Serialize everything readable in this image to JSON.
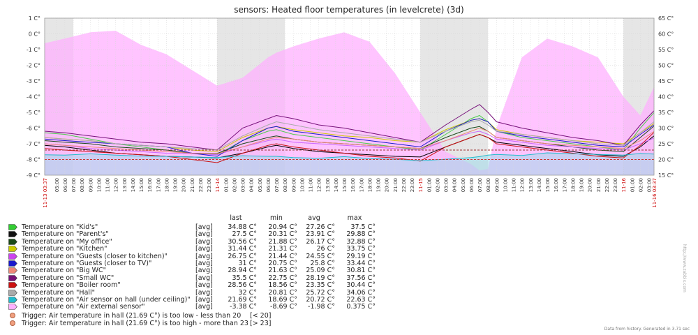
{
  "chart_data": {
    "type": "line",
    "title": "sensors: Heated floor temperatures (in levelcrete) (3d)",
    "left_axis": {
      "min": -9,
      "max": 1,
      "step": 1,
      "unit": "C°",
      "tick_labels": [
        "1 C°",
        "0 C°",
        "-1 C°",
        "-2 C°",
        "-3 C°",
        "-4 C°",
        "-5 C°",
        "-6 C°",
        "-7 C°",
        "-8 C°",
        "-9 C°"
      ]
    },
    "right_axis": {
      "min": 15,
      "max": 65,
      "step": 5,
      "unit": "C°",
      "tick_labels": [
        "65 C°",
        "60 C°",
        "55 C°",
        "50 C°",
        "45 C°",
        "40 C°",
        "35 C°",
        "30 C°",
        "25 C°",
        "20 C°",
        "15 C°"
      ]
    },
    "x_start_hour": 3.617,
    "x_span_hours": 72,
    "x_labels": [
      {
        "h": 3.617,
        "text": "11-13 03:37",
        "highlight": true
      },
      {
        "h": 5,
        "text": "05:00"
      },
      {
        "h": 6,
        "text": "06:00"
      },
      {
        "h": 7,
        "text": "07:00"
      },
      {
        "h": 8,
        "text": "08:00"
      },
      {
        "h": 9,
        "text": "09:00"
      },
      {
        "h": 10,
        "text": "10:00"
      },
      {
        "h": 11,
        "text": "11:00"
      },
      {
        "h": 12,
        "text": "12:00"
      },
      {
        "h": 13,
        "text": "13:00"
      },
      {
        "h": 14,
        "text": "14:00"
      },
      {
        "h": 15,
        "text": "15:00"
      },
      {
        "h": 16,
        "text": "16:00"
      },
      {
        "h": 17,
        "text": "17:00"
      },
      {
        "h": 18,
        "text": "18:00"
      },
      {
        "h": 19,
        "text": "19:00"
      },
      {
        "h": 20,
        "text": "20:00"
      },
      {
        "h": 21,
        "text": "21:00"
      },
      {
        "h": 22,
        "text": "22:00"
      },
      {
        "h": 23,
        "text": "23:00"
      },
      {
        "h": 24,
        "text": "11-14",
        "highlight": true
      },
      {
        "h": 25,
        "text": "01:00"
      },
      {
        "h": 26,
        "text": "02:00"
      },
      {
        "h": 27,
        "text": "03:00"
      },
      {
        "h": 28,
        "text": "04:00"
      },
      {
        "h": 29,
        "text": "05:00"
      },
      {
        "h": 30,
        "text": "06:00"
      },
      {
        "h": 31,
        "text": "07:00"
      },
      {
        "h": 32,
        "text": "08:00"
      },
      {
        "h": 33,
        "text": "09:00"
      },
      {
        "h": 34,
        "text": "10:00"
      },
      {
        "h": 35,
        "text": "11:00"
      },
      {
        "h": 36,
        "text": "12:00"
      },
      {
        "h": 37,
        "text": "13:00"
      },
      {
        "h": 38,
        "text": "14:00"
      },
      {
        "h": 39,
        "text": "15:00"
      },
      {
        "h": 40,
        "text": "16:00"
      },
      {
        "h": 41,
        "text": "17:00"
      },
      {
        "h": 42,
        "text": "18:00"
      },
      {
        "h": 43,
        "text": "19:00"
      },
      {
        "h": 44,
        "text": "20:00"
      },
      {
        "h": 45,
        "text": "21:00"
      },
      {
        "h": 46,
        "text": "22:00"
      },
      {
        "h": 47,
        "text": "23:00"
      },
      {
        "h": 48,
        "text": "11-15",
        "highlight": true
      },
      {
        "h": 49,
        "text": "01:00"
      },
      {
        "h": 50,
        "text": "02:00"
      },
      {
        "h": 51,
        "text": "03:00"
      },
      {
        "h": 52,
        "text": "04:00"
      },
      {
        "h": 53,
        "text": "05:00"
      },
      {
        "h": 54,
        "text": "06:00"
      },
      {
        "h": 55,
        "text": "07:00"
      },
      {
        "h": 56,
        "text": "08:00"
      },
      {
        "h": 57,
        "text": "09:00"
      },
      {
        "h": 58,
        "text": "10:00"
      },
      {
        "h": 59,
        "text": "11:00"
      },
      {
        "h": 60,
        "text": "12:00"
      },
      {
        "h": 61,
        "text": "13:00"
      },
      {
        "h": 62,
        "text": "14:00"
      },
      {
        "h": 63,
        "text": "15:00"
      },
      {
        "h": 64,
        "text": "16:00"
      },
      {
        "h": 65,
        "text": "17:00"
      },
      {
        "h": 66,
        "text": "18:00"
      },
      {
        "h": 67,
        "text": "19:00"
      },
      {
        "h": 68,
        "text": "20:00"
      },
      {
        "h": 69,
        "text": "21:00"
      },
      {
        "h": 70,
        "text": "22:00"
      },
      {
        "h": 71,
        "text": "23:00"
      },
      {
        "h": 72,
        "text": "11-16",
        "highlight": true
      },
      {
        "h": 73,
        "text": "01:00"
      },
      {
        "h": 74,
        "text": "02:00"
      },
      {
        "h": 75,
        "text": "03:00"
      },
      {
        "h": 75.617,
        "text": "11-16 03:37",
        "highlight": true
      }
    ],
    "night_bands_hours": [
      [
        3.617,
        7
      ],
      [
        24,
        32
      ],
      [
        48,
        56
      ],
      [
        72,
        75.617
      ]
    ],
    "hour_points": [
      3.6,
      6,
      9,
      12,
      15,
      18,
      21,
      24,
      27,
      30,
      31,
      33,
      36,
      39,
      42,
      45,
      48,
      51,
      54,
      55,
      56,
      57,
      60,
      63,
      66,
      69,
      72,
      74,
      75.6
    ],
    "series": [
      {
        "name": "Temperature on \"Kid's\"",
        "color": "#4ccc4c",
        "axis": "right",
        "values": [
          28.5,
          28,
          26.5,
          25,
          24,
          23,
          22,
          21.5,
          26,
          29,
          29.5,
          28,
          27,
          26,
          25,
          24,
          23,
          28,
          33,
          34,
          32,
          29,
          27,
          26,
          25,
          24,
          23,
          30,
          34.9
        ]
      },
      {
        "name": "Temperature on \"Parent's\"",
        "color": "#000000",
        "axis": "right",
        "values": [
          24.5,
          24,
          23,
          22,
          21.5,
          21,
          20.8,
          20.5,
          22,
          24,
          24.5,
          23.5,
          22.5,
          22,
          21.5,
          21,
          20.8,
          24,
          27,
          28,
          27,
          25.5,
          24.5,
          23.5,
          22.5,
          21.5,
          21,
          24,
          27.5
        ]
      },
      {
        "name": "Temperature on \"My office\"",
        "color": "#1a4a1a",
        "axis": "right",
        "values": [
          26,
          25.5,
          25,
          24,
          23.5,
          23,
          22,
          21.9,
          25,
          27,
          27.5,
          26.5,
          25.5,
          25,
          24.5,
          24,
          23.5,
          27,
          30,
          30.5,
          29,
          27,
          26,
          25,
          24,
          23,
          22.5,
          27,
          30.6
        ]
      },
      {
        "name": "Temperature on \"Kitchen\"",
        "color": "#cccc00",
        "axis": "right",
        "values": [
          27,
          26.5,
          26,
          25,
          24.5,
          24,
          23,
          22.5,
          27,
          30,
          30.5,
          29.5,
          28.5,
          27.5,
          27,
          26,
          25.5,
          29.5,
          32.5,
          33,
          32,
          29.5,
          28,
          27,
          26,
          25.5,
          25,
          28.5,
          31.4
        ]
      },
      {
        "name": "Temperature on \"Guests (closer to kitchen)\"",
        "color": "#cc66ff",
        "axis": "right",
        "values": [
          25,
          24.5,
          23.5,
          23,
          22.5,
          22,
          21.8,
          21.5,
          24,
          26,
          26.5,
          25.5,
          25,
          24.5,
          24,
          23.5,
          23,
          26,
          28.5,
          29,
          28,
          26.5,
          25.5,
          24.5,
          24,
          23.5,
          23,
          25,
          26.8
        ]
      },
      {
        "name": "Temperature on \"Guests (closer to TV)\"",
        "color": "#1a1acc",
        "axis": "right",
        "values": [
          26.5,
          26,
          25.5,
          25,
          24.5,
          24,
          22,
          21,
          26,
          30,
          30.5,
          29,
          28,
          27,
          26,
          25,
          24,
          29,
          32.5,
          33,
          32,
          29,
          27.5,
          26.5,
          25.5,
          24.5,
          24,
          28,
          31
        ]
      },
      {
        "name": "Temperature on \"Big WC\"",
        "color": "#ee8877",
        "axis": "right",
        "values": [
          25,
          24.5,
          24,
          23.5,
          23,
          22.5,
          22,
          21.8,
          24,
          26.5,
          27,
          26.5,
          25.5,
          25,
          24.5,
          24,
          23.5,
          26,
          29,
          30,
          29,
          27,
          26,
          25,
          24.5,
          24,
          23.5,
          26,
          28.9
        ]
      },
      {
        "name": "Temperature on \"Small WC\"",
        "color": "#77117a",
        "axis": "right",
        "values": [
          29,
          28.5,
          27.5,
          26.5,
          25.5,
          25,
          24,
          23,
          30,
          33,
          34,
          33,
          31,
          30,
          28.5,
          27,
          25.5,
          31,
          36,
          37.5,
          35,
          32,
          30,
          28.5,
          27,
          26,
          24.5,
          31,
          35.5
        ]
      },
      {
        "name": "Temperature on \"Boiler room\"",
        "color": "#cc1111",
        "axis": "right",
        "values": [
          23.5,
          23,
          22.5,
          22,
          21.5,
          21,
          20,
          19,
          22,
          24.5,
          25,
          24,
          23,
          22,
          21,
          20.5,
          19.5,
          24,
          27,
          28,
          27,
          25,
          24,
          23,
          22,
          21,
          20.5,
          24.5,
          28.6
        ]
      },
      {
        "name": "Temperature on \"Hall\"",
        "color": "#aaaaaa",
        "axis": "right",
        "values": [
          27,
          26.5,
          26,
          25,
          24.5,
          24,
          23.5,
          23,
          27.5,
          31,
          32,
          31,
          29.5,
          28.5,
          27.5,
          26.5,
          25.5,
          29,
          32,
          32.5,
          31,
          29,
          28,
          27,
          26,
          25,
          24.5,
          28.5,
          32
        ]
      },
      {
        "name": "Temperature on \"Air sensor on hall (under ceiling)\"",
        "color": "#22bbcc",
        "axis": "right",
        "values": [
          21.5,
          21.4,
          21.8,
          21.4,
          21.1,
          21,
          20.8,
          20.6,
          21.2,
          21,
          21,
          20.6,
          20.4,
          20.9,
          20.3,
          20.1,
          19.6,
          20.1,
          20.6,
          20.9,
          21.4,
          21.6,
          21.3,
          22.1,
          21.8,
          21.6,
          21.4,
          21.9,
          21.7
        ]
      },
      {
        "name": "Temperature on \"Air external sensor\"",
        "color": "#ffb0ff",
        "axis": "left",
        "values": [
          -0.6,
          -0.3,
          0.1,
          0.2,
          -0.7,
          -1.3,
          -2.3,
          -3.3,
          -2.8,
          -1.5,
          -1.2,
          -0.8,
          -0.3,
          0.1,
          -0.5,
          -2.5,
          -5,
          -7.5,
          -8.3,
          -8.7,
          -8.6,
          -6,
          -1.5,
          -0.3,
          -0.8,
          -1.5,
          -4,
          -5.2,
          -3.4
        ]
      }
    ],
    "thresholds": [
      {
        "value": 20,
        "color": "#cc3333",
        "axis": "right"
      },
      {
        "value": 23,
        "color": "#993333",
        "axis": "right"
      }
    ]
  },
  "legend": {
    "columns": {
      "last": "last",
      "min": "min",
      "avg": "avg",
      "max": "max"
    },
    "rows": [
      {
        "label": "Temperature on \"Kid's\"",
        "func": "[avg]",
        "last": "34.88 C°",
        "min": "20.94 C°",
        "avg": "27.26 C°",
        "max": "37.5 C°",
        "color": "#33cc33"
      },
      {
        "label": "Temperature on \"Parent's\"",
        "func": "[avg]",
        "last": "27.5 C°",
        "min": "20.31 C°",
        "avg": "23.91 C°",
        "max": "29.88 C°",
        "color": "#111111"
      },
      {
        "label": "Temperature on \"My office\"",
        "func": "[avg]",
        "last": "30.56 C°",
        "min": "21.88 C°",
        "avg": "26.17 C°",
        "max": "32.88 C°",
        "color": "#1a4a1a"
      },
      {
        "label": "Temperature on \"Kitchen\"",
        "func": "[avg]",
        "last": "31.44 C°",
        "min": "21.31 C°",
        "avg": "26 C°",
        "max": "33.75 C°",
        "color": "#cccc00"
      },
      {
        "label": "Temperature on \"Guests (closer to kitchen)\"",
        "func": "[avg]",
        "last": "26.75 C°",
        "min": "21.44 C°",
        "avg": "24.55 C°",
        "max": "29.19 C°",
        "color": "#cc44ee"
      },
      {
        "label": "Temperature on \"Guests (closer to TV)\"",
        "func": "[avg]",
        "last": "31 C°",
        "min": "20.75 C°",
        "avg": "25.8 C°",
        "max": "33.44 C°",
        "color": "#1a1acc"
      },
      {
        "label": "Temperature on \"Big WC\"",
        "func": "[avg]",
        "last": "28.94 C°",
        "min": "21.63 C°",
        "avg": "25.09 C°",
        "max": "30.81 C°",
        "color": "#ee8877"
      },
      {
        "label": "Temperature on \"Small WC\"",
        "func": "[avg]",
        "last": "35.5 C°",
        "min": "22.75 C°",
        "avg": "28.19 C°",
        "max": "37.56 C°",
        "color": "#771177"
      },
      {
        "label": "Temperature on \"Boiler room\"",
        "func": "[avg]",
        "last": "28.56 C°",
        "min": "18.56 C°",
        "avg": "23.35 C°",
        "max": "30.44 C°",
        "color": "#cc1111"
      },
      {
        "label": "Temperature on \"Hall\"",
        "func": "[avg]",
        "last": "32 C°",
        "min": "20.81 C°",
        "avg": "25.72 C°",
        "max": "34.06 C°",
        "color": "#aaaaaa"
      },
      {
        "label": "Temperature on \"Air sensor on hall (under ceiling)\"",
        "func": "[avg]",
        "last": "21.69 C°",
        "min": "18.69 C°",
        "avg": "20.72 C°",
        "max": "22.63 C°",
        "color": "#22bbcc"
      },
      {
        "label": "Temperature on \"Air external sensor\"",
        "func": "[avg]",
        "last": "-3.38 C°",
        "min": "-8.69 C°",
        "avg": "-1.98 C°",
        "max": "0.375 C°",
        "color": "#ffb0ff"
      }
    ],
    "triggers": [
      {
        "label": "Trigger: Air temperature in hall (21.69 C°) is too low - less than 20",
        "cond": "[< 20]"
      },
      {
        "label": "Trigger: Air temperature in hall (21.69 C°) is too high - more than 23",
        "cond": "[> 23]"
      }
    ]
  },
  "footer": "Data from history. Generated in 3.71 sec",
  "watermark": "http://www.zabbix.com"
}
